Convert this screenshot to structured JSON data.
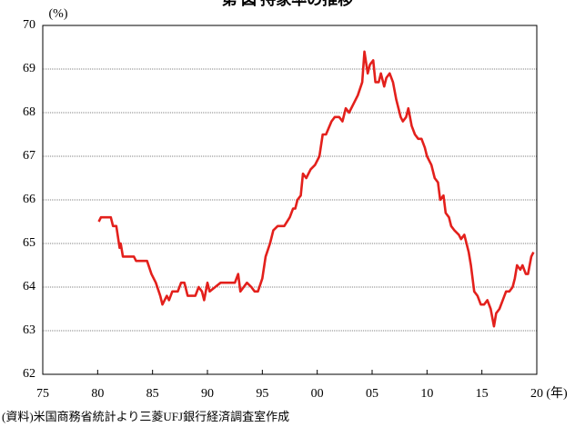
{
  "chart_data": {
    "type": "line",
    "title": "第 図 持家率の推移",
    "y_label": "(%)",
    "x_label": "(年)",
    "source": "(資料)米国商務省統計より三菱UFJ銀行経済調査室作成",
    "xlim": [
      1975,
      2020
    ],
    "ylim": [
      62,
      70
    ],
    "xticks": [
      {
        "value": 1975,
        "label": "75"
      },
      {
        "value": 1980,
        "label": "80"
      },
      {
        "value": 1985,
        "label": "85"
      },
      {
        "value": 1990,
        "label": "90"
      },
      {
        "value": 1995,
        "label": "95"
      },
      {
        "value": 2000,
        "label": "00"
      },
      {
        "value": 2005,
        "label": "05"
      },
      {
        "value": 2010,
        "label": "10"
      },
      {
        "value": 2015,
        "label": "15"
      },
      {
        "value": 2020,
        "label": "20"
      }
    ],
    "yticks": [
      62,
      63,
      64,
      65,
      66,
      67,
      68,
      69,
      70
    ],
    "grid": true,
    "x": [
      1980.1,
      1980.3,
      1981.2,
      1981.4,
      1981.7,
      1982.0,
      1982.1,
      1982.3,
      1983.3,
      1983.5,
      1984.5,
      1984.9,
      1985.3,
      1985.7,
      1985.9,
      1986.3,
      1986.5,
      1986.8,
      1987.3,
      1987.6,
      1987.9,
      1988.2,
      1988.9,
      1989.2,
      1989.5,
      1989.7,
      1990.0,
      1990.2,
      1990.7,
      1991.2,
      1992.5,
      1992.8,
      1993.0,
      1993.3,
      1993.6,
      1994.0,
      1994.3,
      1994.6,
      1995.0,
      1995.3,
      1995.7,
      1996.0,
      1996.4,
      1997.0,
      1997.5,
      1997.8,
      1998.0,
      1998.2,
      1998.5,
      1998.7,
      1999.0,
      1999.4,
      1999.8,
      2000.2,
      2000.5,
      2000.8,
      2001.3,
      2001.6,
      2002.0,
      2002.3,
      2002.6,
      2002.9,
      2003.3,
      2003.7,
      2004.1,
      2004.3,
      2004.6,
      2004.8,
      2005.1,
      2005.3,
      2005.6,
      2005.8,
      2006.1,
      2006.3,
      2006.6,
      2006.9,
      2007.2,
      2007.6,
      2007.8,
      2008.1,
      2008.3,
      2008.6,
      2008.9,
      2009.2,
      2009.5,
      2009.8,
      2010.0,
      2010.4,
      2010.7,
      2011.0,
      2011.2,
      2011.5,
      2011.7,
      2012.0,
      2012.2,
      2012.5,
      2012.9,
      2013.1,
      2013.4,
      2013.5,
      2013.8,
      2014.0,
      2014.3,
      2014.6,
      2014.9,
      2015.2,
      2015.5,
      2015.8,
      2016.1,
      2016.3,
      2016.6,
      2016.9,
      2017.2,
      2017.5,
      2017.8,
      2018.0,
      2018.2,
      2018.5,
      2018.7,
      2019.0,
      2019.2,
      2019.5,
      2019.7
    ],
    "series": [
      {
        "name": "持家率",
        "color": "#e3201c",
        "values": [
          65.5,
          65.6,
          65.6,
          65.4,
          65.4,
          64.9,
          65.0,
          64.7,
          64.7,
          64.6,
          64.6,
          64.3,
          64.1,
          63.8,
          63.6,
          63.8,
          63.7,
          63.9,
          63.9,
          64.1,
          64.1,
          63.8,
          63.8,
          64.0,
          63.9,
          63.7,
          64.1,
          63.9,
          64.0,
          64.1,
          64.1,
          64.3,
          63.9,
          64.0,
          64.1,
          64.0,
          63.9,
          63.9,
          64.2,
          64.7,
          65.0,
          65.3,
          65.4,
          65.4,
          65.6,
          65.8,
          65.8,
          66.0,
          66.1,
          66.6,
          66.5,
          66.7,
          66.8,
          67.0,
          67.5,
          67.5,
          67.8,
          67.9,
          67.9,
          67.8,
          68.1,
          68.0,
          68.2,
          68.4,
          68.7,
          69.4,
          68.9,
          69.1,
          69.2,
          68.7,
          68.7,
          68.9,
          68.6,
          68.8,
          68.9,
          68.7,
          68.3,
          67.9,
          67.8,
          67.9,
          68.1,
          67.7,
          67.5,
          67.4,
          67.4,
          67.2,
          67.0,
          66.8,
          66.5,
          66.4,
          66.0,
          66.1,
          65.7,
          65.6,
          65.4,
          65.3,
          65.2,
          65.1,
          65.2,
          65.1,
          64.8,
          64.5,
          63.9,
          63.8,
          63.6,
          63.6,
          63.7,
          63.5,
          63.1,
          63.4,
          63.5,
          63.7,
          63.9,
          63.9,
          64.0,
          64.2,
          64.5,
          64.4,
          64.5,
          64.3,
          64.3,
          64.7,
          64.8
        ]
      }
    ]
  }
}
